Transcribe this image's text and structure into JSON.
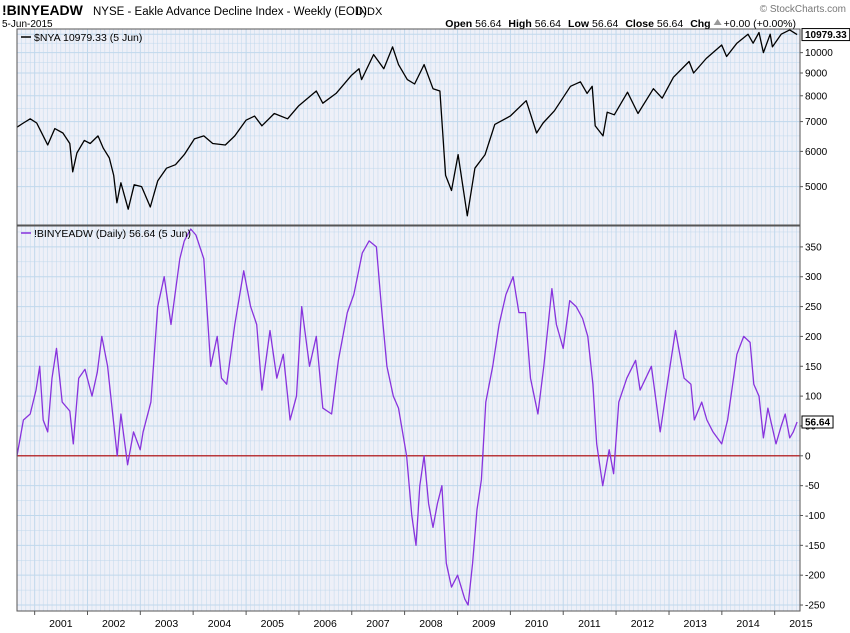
{
  "header": {
    "symbol": "!BINYEADW",
    "description": "NYSE - Eakle Advance Decline Index - Weekly (EOD)",
    "exchange": "INDX",
    "date": "5-Jun-2015",
    "watermark": "© StockCharts.com",
    "ohlc": [
      {
        "label": "Open",
        "value": "56.64"
      },
      {
        "label": "High",
        "value": "56.64"
      },
      {
        "label": "Low",
        "value": "56.64"
      },
      {
        "label": "Close",
        "value": "56.64"
      },
      {
        "label": "Chg",
        "value": "+0.00 (+0.00%)"
      }
    ],
    "chg_icon": "triangle-up-icon"
  },
  "colors": {
    "plot_bg": "#eef0f8",
    "grid": "#c0d8ec",
    "price_line": "#000000",
    "indicator_line": "#8833dd",
    "zero_line": "#b00000",
    "panel_border": "#555555"
  },
  "chart_data": [
    {
      "type": "line",
      "panel": "upper",
      "legend": "$NYA 10979.33 (5 Jun)",
      "last_value_label": "10979.33",
      "y_scale": "log",
      "ylim": [
        4100,
        11300
      ],
      "y_ticks": [
        "5000",
        "6000",
        "7000",
        "8000",
        "9000",
        "10000"
      ],
      "x_ticks": [
        "2001",
        "2002",
        "2003",
        "2004",
        "2005",
        "2006",
        "2007",
        "2008",
        "2009",
        "2010",
        "2011",
        "2012",
        "2013",
        "2014",
        "2015"
      ],
      "xlim": [
        "2000-09-01",
        "2015-06-25"
      ],
      "series": [
        {
          "values_xy": [
            [
              "2000-09-01",
              6800
            ],
            [
              "2000-10-15",
              6950
            ],
            [
              "2000-12-01",
              7100
            ],
            [
              "2001-01-15",
              6950
            ],
            [
              "2001-03-01",
              6500
            ],
            [
              "2001-04-01",
              6200
            ],
            [
              "2001-05-20",
              6750
            ],
            [
              "2001-07-15",
              6600
            ],
            [
              "2001-09-01",
              6250
            ],
            [
              "2001-09-21",
              5400
            ],
            [
              "2001-10-20",
              5950
            ],
            [
              "2001-12-10",
              6350
            ],
            [
              "2002-01-20",
              6250
            ],
            [
              "2002-03-15",
              6500
            ],
            [
              "2002-04-20",
              6100
            ],
            [
              "2002-06-01",
              5800
            ],
            [
              "2002-07-01",
              5300
            ],
            [
              "2002-07-23",
              4600
            ],
            [
              "2002-08-20",
              5100
            ],
            [
              "2002-10-09",
              4450
            ],
            [
              "2002-11-20",
              5050
            ],
            [
              "2003-01-10",
              5000
            ],
            [
              "2003-03-11",
              4500
            ],
            [
              "2003-05-01",
              5150
            ],
            [
              "2003-07-01",
              5500
            ],
            [
              "2003-09-01",
              5600
            ],
            [
              "2003-11-01",
              5900
            ],
            [
              "2004-01-10",
              6400
            ],
            [
              "2004-03-15",
              6500
            ],
            [
              "2004-05-15",
              6250
            ],
            [
              "2004-08-10",
              6200
            ],
            [
              "2004-10-15",
              6500
            ],
            [
              "2004-12-31",
              7050
            ],
            [
              "2005-03-01",
              7200
            ],
            [
              "2005-04-20",
              6850
            ],
            [
              "2005-07-15",
              7300
            ],
            [
              "2005-10-15",
              7100
            ],
            [
              "2005-12-31",
              7600
            ],
            [
              "2006-05-01",
              8200
            ],
            [
              "2006-06-15",
              7700
            ],
            [
              "2006-09-15",
              8100
            ],
            [
              "2006-12-31",
              8900
            ],
            [
              "2007-02-20",
              9200
            ],
            [
              "2007-03-10",
              8700
            ],
            [
              "2007-06-01",
              9900
            ],
            [
              "2007-08-10",
              9200
            ],
            [
              "2007-10-10",
              10300
            ],
            [
              "2007-11-20",
              9400
            ],
            [
              "2008-01-20",
              8700
            ],
            [
              "2008-03-10",
              8500
            ],
            [
              "2008-05-15",
              9400
            ],
            [
              "2008-07-15",
              8300
            ],
            [
              "2008-09-01",
              8200
            ],
            [
              "2008-10-10",
              5300
            ],
            [
              "2008-11-20",
              4900
            ],
            [
              "2009-01-05",
              5900
            ],
            [
              "2009-03-09",
              4300
            ],
            [
              "2009-05-01",
              5500
            ],
            [
              "2009-07-10",
              5900
            ],
            [
              "2009-09-15",
              6900
            ],
            [
              "2009-12-31",
              7200
            ],
            [
              "2010-04-20",
              7800
            ],
            [
              "2010-07-01",
              6600
            ],
            [
              "2010-08-15",
              6950
            ],
            [
              "2010-11-01",
              7400
            ],
            [
              "2011-02-20",
              8400
            ],
            [
              "2011-04-30",
              8600
            ],
            [
              "2011-06-15",
              8100
            ],
            [
              "2011-07-20",
              8400
            ],
            [
              "2011-08-10",
              6850
            ],
            [
              "2011-10-03",
              6500
            ],
            [
              "2011-11-01",
              7350
            ],
            [
              "2011-12-20",
              7250
            ],
            [
              "2012-03-20",
              8150
            ],
            [
              "2012-06-01",
              7300
            ],
            [
              "2012-09-15",
              8300
            ],
            [
              "2012-11-15",
              7900
            ],
            [
              "2013-01-31",
              8800
            ],
            [
              "2013-05-20",
              9550
            ],
            [
              "2013-06-20",
              9000
            ],
            [
              "2013-09-15",
              9700
            ],
            [
              "2013-12-31",
              10400
            ],
            [
              "2014-02-03",
              9800
            ],
            [
              "2014-04-15",
              10500
            ],
            [
              "2014-07-01",
              11000
            ],
            [
              "2014-08-05",
              10500
            ],
            [
              "2014-09-15",
              11100
            ],
            [
              "2014-10-15",
              10000
            ],
            [
              "2014-12-01",
              11000
            ],
            [
              "2014-12-16",
              10300
            ],
            [
              "2015-02-15",
              11000
            ],
            [
              "2015-04-15",
              11250
            ],
            [
              "2015-06-05",
              10979
            ]
          ]
        }
      ]
    },
    {
      "type": "line",
      "panel": "lower",
      "legend": "!BINYEADW (Daily) 56.64 (5 Jun)",
      "last_value_label": "56.64",
      "ylim": [
        -260,
        385
      ],
      "y_ticks": [
        -250,
        -200,
        -150,
        -100,
        -50,
        0,
        50,
        100,
        150,
        200,
        250,
        300,
        350
      ],
      "reference_line": 0,
      "series": [
        {
          "values_xy": [
            [
              "2000-09-01",
              0
            ],
            [
              "2000-10-15",
              60
            ],
            [
              "2000-12-01",
              70
            ],
            [
              "2001-01-10",
              110
            ],
            [
              "2001-02-05",
              150
            ],
            [
              "2001-03-01",
              60
            ],
            [
              "2001-04-01",
              40
            ],
            [
              "2001-05-01",
              130
            ],
            [
              "2001-06-01",
              180
            ],
            [
              "2001-07-10",
              90
            ],
            [
              "2001-09-01",
              75
            ],
            [
              "2001-09-25",
              20
            ],
            [
              "2001-11-01",
              130
            ],
            [
              "2001-12-15",
              145
            ],
            [
              "2002-02-01",
              100
            ],
            [
              "2002-03-10",
              140
            ],
            [
              "2002-04-10",
              200
            ],
            [
              "2002-05-20",
              150
            ],
            [
              "2002-06-15",
              90
            ],
            [
              "2002-07-25",
              0
            ],
            [
              "2002-08-20",
              70
            ],
            [
              "2002-10-05",
              -15
            ],
            [
              "2002-11-15",
              40
            ],
            [
              "2002-12-31",
              10
            ],
            [
              "2003-01-20",
              40
            ],
            [
              "2003-03-15",
              90
            ],
            [
              "2003-05-01",
              250
            ],
            [
              "2003-06-15",
              300
            ],
            [
              "2003-08-01",
              220
            ],
            [
              "2003-10-01",
              330
            ],
            [
              "2003-11-01",
              360
            ],
            [
              "2003-12-15",
              380
            ],
            [
              "2004-01-20",
              370
            ],
            [
              "2004-03-15",
              330
            ],
            [
              "2004-05-01",
              150
            ],
            [
              "2004-06-15",
              200
            ],
            [
              "2004-07-15",
              130
            ],
            [
              "2004-08-20",
              120
            ],
            [
              "2004-10-15",
              220
            ],
            [
              "2004-12-15",
              310
            ],
            [
              "2005-02-01",
              250
            ],
            [
              "2005-03-15",
              220
            ],
            [
              "2005-04-20",
              110
            ],
            [
              "2005-06-15",
              210
            ],
            [
              "2005-08-01",
              130
            ],
            [
              "2005-09-15",
              170
            ],
            [
              "2005-11-01",
              60
            ],
            [
              "2005-12-15",
              100
            ],
            [
              "2006-01-20",
              250
            ],
            [
              "2006-03-15",
              150
            ],
            [
              "2006-05-01",
              200
            ],
            [
              "2006-06-15",
              80
            ],
            [
              "2006-08-15",
              70
            ],
            [
              "2006-10-01",
              160
            ],
            [
              "2006-12-01",
              240
            ],
            [
              "2007-01-15",
              270
            ],
            [
              "2007-03-15",
              340
            ],
            [
              "2007-05-01",
              360
            ],
            [
              "2007-06-20",
              350
            ],
            [
              "2007-07-25",
              250
            ],
            [
              "2007-09-01",
              150
            ],
            [
              "2007-10-15",
              100
            ],
            [
              "2007-11-20",
              80
            ],
            [
              "2008-01-15",
              0
            ],
            [
              "2008-02-20",
              -100
            ],
            [
              "2008-03-20",
              -150
            ],
            [
              "2008-04-15",
              -50
            ],
            [
              "2008-05-15",
              0
            ],
            [
              "2008-06-15",
              -80
            ],
            [
              "2008-07-15",
              -120
            ],
            [
              "2008-08-15",
              -80
            ],
            [
              "2008-09-15",
              -50
            ],
            [
              "2008-10-15",
              -180
            ],
            [
              "2008-11-20",
              -220
            ],
            [
              "2009-01-01",
              -200
            ],
            [
              "2009-02-20",
              -240
            ],
            [
              "2009-03-15",
              -250
            ],
            [
              "2009-04-15",
              -180
            ],
            [
              "2009-05-15",
              -90
            ],
            [
              "2009-06-15",
              -40
            ],
            [
              "2009-07-15",
              90
            ],
            [
              "2009-09-01",
              150
            ],
            [
              "2009-10-15",
              220
            ],
            [
              "2009-12-01",
              270
            ],
            [
              "2010-01-20",
              300
            ],
            [
              "2010-03-01",
              240
            ],
            [
              "2010-04-15",
              240
            ],
            [
              "2010-05-20",
              130
            ],
            [
              "2010-07-10",
              70
            ],
            [
              "2010-08-20",
              150
            ],
            [
              "2010-10-15",
              280
            ],
            [
              "2010-11-15",
              220
            ],
            [
              "2011-01-01",
              180
            ],
            [
              "2011-02-15",
              260
            ],
            [
              "2011-04-01",
              250
            ],
            [
              "2011-05-15",
              230
            ],
            [
              "2011-06-20",
              200
            ],
            [
              "2011-07-25",
              120
            ],
            [
              "2011-08-20",
              20
            ],
            [
              "2011-10-01",
              -50
            ],
            [
              "2011-11-15",
              10
            ],
            [
              "2011-12-15",
              -30
            ],
            [
              "2012-01-20",
              90
            ],
            [
              "2012-03-15",
              130
            ],
            [
              "2012-05-15",
              160
            ],
            [
              "2012-06-15",
              110
            ],
            [
              "2012-09-01",
              150
            ],
            [
              "2012-11-01",
              40
            ],
            [
              "2012-12-20",
              120
            ],
            [
              "2013-02-15",
              210
            ],
            [
              "2013-04-15",
              130
            ],
            [
              "2013-06-01",
              120
            ],
            [
              "2013-06-25",
              60
            ],
            [
              "2013-08-15",
              90
            ],
            [
              "2013-09-20",
              60
            ],
            [
              "2013-11-01",
              40
            ],
            [
              "2013-12-31",
              20
            ],
            [
              "2014-02-10",
              60
            ],
            [
              "2014-04-15",
              170
            ],
            [
              "2014-06-01",
              200
            ],
            [
              "2014-07-15",
              190
            ],
            [
              "2014-08-10",
              120
            ],
            [
              "2014-09-15",
              100
            ],
            [
              "2014-10-15",
              30
            ],
            [
              "2014-11-15",
              80
            ],
            [
              "2015-01-10",
              20
            ],
            [
              "2015-02-15",
              50
            ],
            [
              "2015-03-15",
              70
            ],
            [
              "2015-04-15",
              30
            ],
            [
              "2015-05-10",
              40
            ],
            [
              "2015-06-05",
              56.64
            ]
          ]
        }
      ]
    }
  ]
}
